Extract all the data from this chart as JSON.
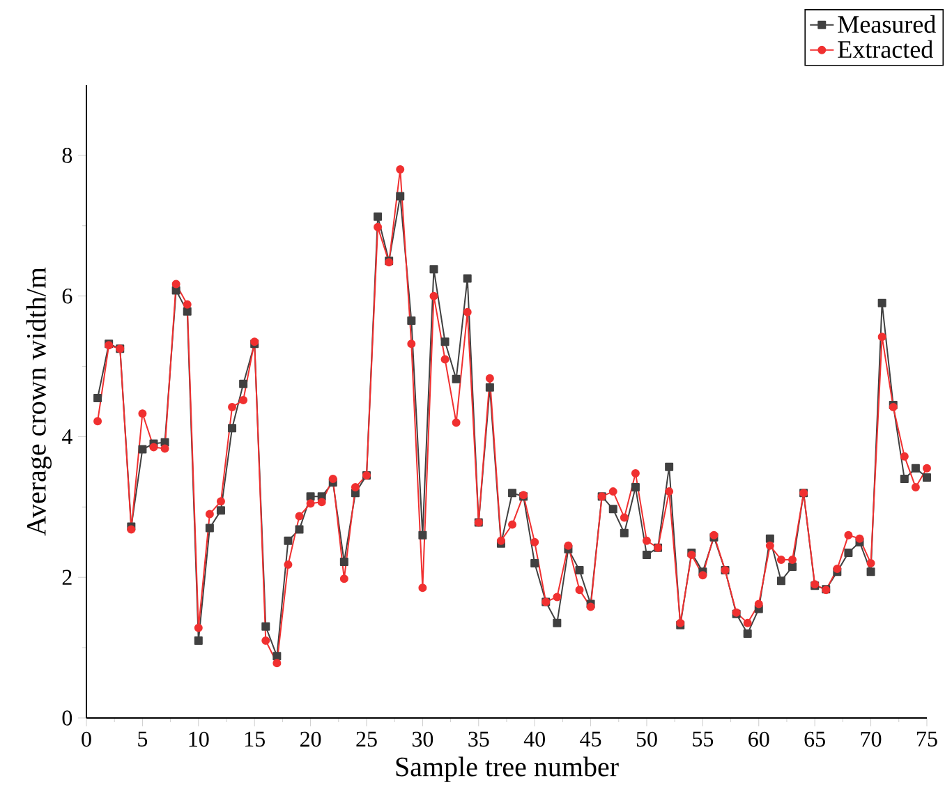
{
  "chart_data": {
    "type": "line",
    "xlabel": "Sample tree number",
    "ylabel": "Average crown width/m",
    "x": [
      1,
      2,
      3,
      4,
      5,
      6,
      7,
      8,
      9,
      10,
      11,
      12,
      13,
      14,
      15,
      16,
      17,
      18,
      19,
      20,
      21,
      22,
      23,
      24,
      25,
      26,
      27,
      28,
      29,
      30,
      31,
      32,
      33,
      34,
      35,
      36,
      37,
      38,
      39,
      40,
      41,
      42,
      43,
      44,
      45,
      46,
      47,
      48,
      49,
      50,
      51,
      52,
      53,
      54,
      55,
      56,
      57,
      58,
      59,
      60,
      61,
      62,
      63,
      64,
      65,
      66,
      67,
      68,
      69,
      70,
      71,
      72,
      73,
      74,
      75
    ],
    "series": [
      {
        "name": "Measured",
        "color": "#404040",
        "marker": "square",
        "values": [
          4.55,
          5.32,
          5.25,
          2.72,
          3.82,
          3.9,
          3.92,
          6.08,
          5.78,
          1.1,
          2.7,
          2.95,
          4.12,
          4.75,
          5.32,
          1.3,
          0.88,
          2.52,
          2.68,
          3.15,
          3.15,
          3.35,
          2.22,
          3.2,
          3.45,
          7.13,
          6.5,
          7.42,
          5.65,
          2.6,
          6.38,
          5.35,
          4.82,
          6.25,
          2.78,
          4.7,
          2.48,
          3.2,
          3.15,
          2.2,
          1.65,
          1.35,
          2.4,
          2.1,
          1.62,
          3.15,
          2.97,
          2.63,
          3.28,
          2.32,
          2.42,
          3.57,
          1.32,
          2.35,
          2.08,
          2.57,
          2.1,
          1.48,
          1.2,
          1.55,
          2.55,
          1.95,
          2.15,
          3.2,
          1.88,
          1.83,
          2.08,
          2.35,
          2.5,
          2.08,
          5.9,
          4.45,
          3.4,
          3.55,
          3.42
        ]
      },
      {
        "name": "Extracted",
        "color": "#f03030",
        "marker": "circle",
        "values": [
          4.22,
          5.3,
          5.25,
          2.68,
          4.33,
          3.85,
          3.83,
          6.17,
          5.88,
          1.28,
          2.9,
          3.08,
          4.42,
          4.52,
          5.35,
          1.1,
          0.78,
          2.18,
          2.87,
          3.05,
          3.07,
          3.4,
          1.98,
          3.28,
          3.45,
          6.98,
          6.48,
          7.8,
          5.32,
          1.85,
          6.0,
          5.1,
          4.2,
          5.77,
          2.78,
          4.83,
          2.52,
          2.75,
          3.17,
          2.5,
          1.65,
          1.72,
          2.45,
          1.82,
          1.58,
          3.15,
          3.22,
          2.85,
          3.48,
          2.52,
          2.42,
          3.22,
          1.35,
          2.32,
          2.03,
          2.6,
          2.1,
          1.5,
          1.35,
          1.62,
          2.45,
          2.25,
          2.25,
          3.2,
          1.9,
          1.82,
          2.12,
          2.6,
          2.55,
          2.2,
          5.42,
          4.42,
          3.72,
          3.28,
          3.55
        ]
      }
    ],
    "xlim": [
      0,
      75
    ],
    "xticks": [
      0,
      5,
      10,
      15,
      20,
      25,
      30,
      35,
      40,
      45,
      50,
      55,
      60,
      65,
      70,
      75
    ],
    "ylim": [
      0,
      9
    ],
    "yticks": [
      0,
      2,
      4,
      6,
      8
    ],
    "legend": "top right"
  }
}
